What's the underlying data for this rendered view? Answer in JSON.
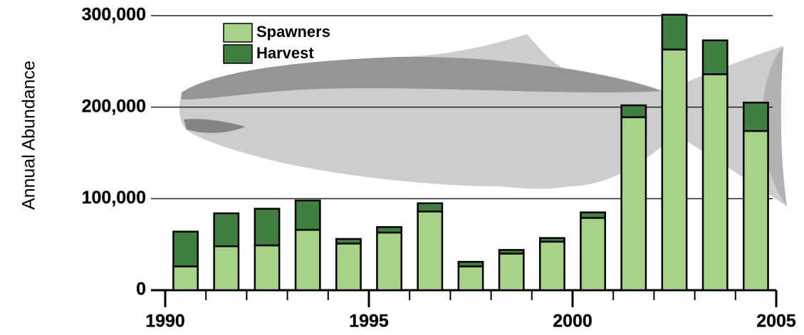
{
  "chart_data": {
    "type": "stacked_bar",
    "y_label": "Annual Abundance",
    "x": [
      1990,
      1991,
      1992,
      1993,
      1994,
      1995,
      1996,
      1997,
      1998,
      1999,
      2000,
      2001,
      2002,
      2003,
      2004
    ],
    "series": [
      {
        "name": "Spawners",
        "color": "#a6d388",
        "values": [
          26000,
          48000,
          49000,
          66000,
          51000,
          63000,
          86000,
          26000,
          40000,
          53000,
          79000,
          189000,
          263000,
          236000,
          174000
        ]
      },
      {
        "name": "Harvest",
        "color": "#3f7f3f",
        "values": [
          38000,
          36000,
          40000,
          32000,
          5000,
          6000,
          9000,
          5000,
          4000,
          4000,
          6000,
          13000,
          38000,
          37000,
          31000
        ]
      }
    ],
    "xlim": [
      1990,
      2005
    ],
    "xticks": [
      1990,
      1995,
      2000,
      2005
    ],
    "xminorticks": [
      1991,
      1992,
      1993,
      1994,
      1996,
      1997,
      1998,
      1999,
      2001,
      2002,
      2003,
      2004
    ],
    "ylim": [
      0,
      300000
    ],
    "yticks": [
      0,
      {
        "value": 100000,
        "label": "100,000"
      },
      {
        "value": 200000,
        "label": "200,000"
      },
      {
        "value": 300000,
        "label": "300,000"
      }
    ],
    "grid": true
  }
}
